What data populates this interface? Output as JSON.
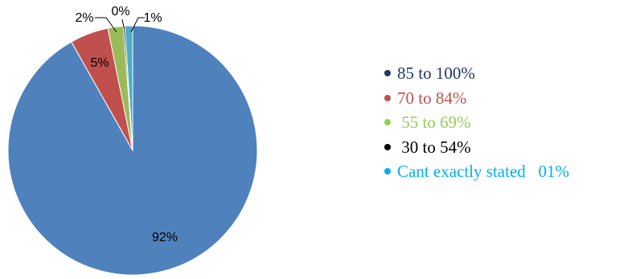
{
  "chart_data": {
    "type": "pie",
    "title": "",
    "start_angle_deg": 0,
    "direction": "clockwise",
    "slices": [
      {
        "display_label": "92%",
        "value": 92,
        "color": "#4F81BD"
      },
      {
        "display_label": "5%",
        "value": 5,
        "color": "#C0504D"
      },
      {
        "display_label": "2%",
        "value": 2,
        "color": "#9BBB59"
      },
      {
        "display_label": "0%",
        "value": 0.2,
        "color": "#000000"
      },
      {
        "display_label": "1%",
        "value": 1,
        "color": "#4BACC6"
      }
    ],
    "legend": {
      "placement": "right",
      "entries": [
        {
          "label": "85 to 100%",
          "color": "#1F3864",
          "text_color": "#1F3864"
        },
        {
          "label": "70 to 84%",
          "color": "#C0504D",
          "text_color": "#C0504D"
        },
        {
          "label": " 55 to 69%",
          "color": "#92D050",
          "text_color": "#92D050"
        },
        {
          "label": " 30 to 54%",
          "color": "#000000",
          "text_color": "#000000"
        },
        {
          "label": "Cant exactly stated   01%",
          "color": "#00B0F0",
          "text_color": "#00B0F0"
        }
      ]
    }
  }
}
